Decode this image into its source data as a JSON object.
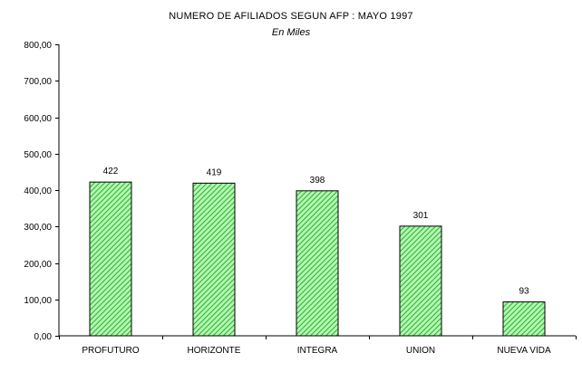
{
  "chart_data": {
    "type": "bar",
    "title": "NUMERO DE AFILIADOS SEGUN AFP : MAYO 1997",
    "subtitle": "En Miles",
    "xlabel": "",
    "ylabel": "",
    "categories": [
      "PROFUTURO",
      "HORIZONTE",
      "INTEGRA",
      "UNION",
      "NUEVA VIDA"
    ],
    "values": [
      422,
      419,
      398,
      301,
      93
    ],
    "value_labels": [
      "422",
      "419",
      "398",
      "301",
      "93"
    ],
    "ylim": [
      0,
      800
    ],
    "yticks": [
      0,
      100,
      200,
      300,
      400,
      500,
      600,
      700,
      800
    ],
    "ytick_labels": [
      "0,00",
      "100,00",
      "200,00",
      "300,00",
      "400,00",
      "500,00",
      "600,00",
      "700,00",
      "800,00"
    ],
    "grid": false,
    "legend": "none",
    "bar_color": "#7ee87e",
    "bar_pattern": "diagonal-hatch"
  }
}
